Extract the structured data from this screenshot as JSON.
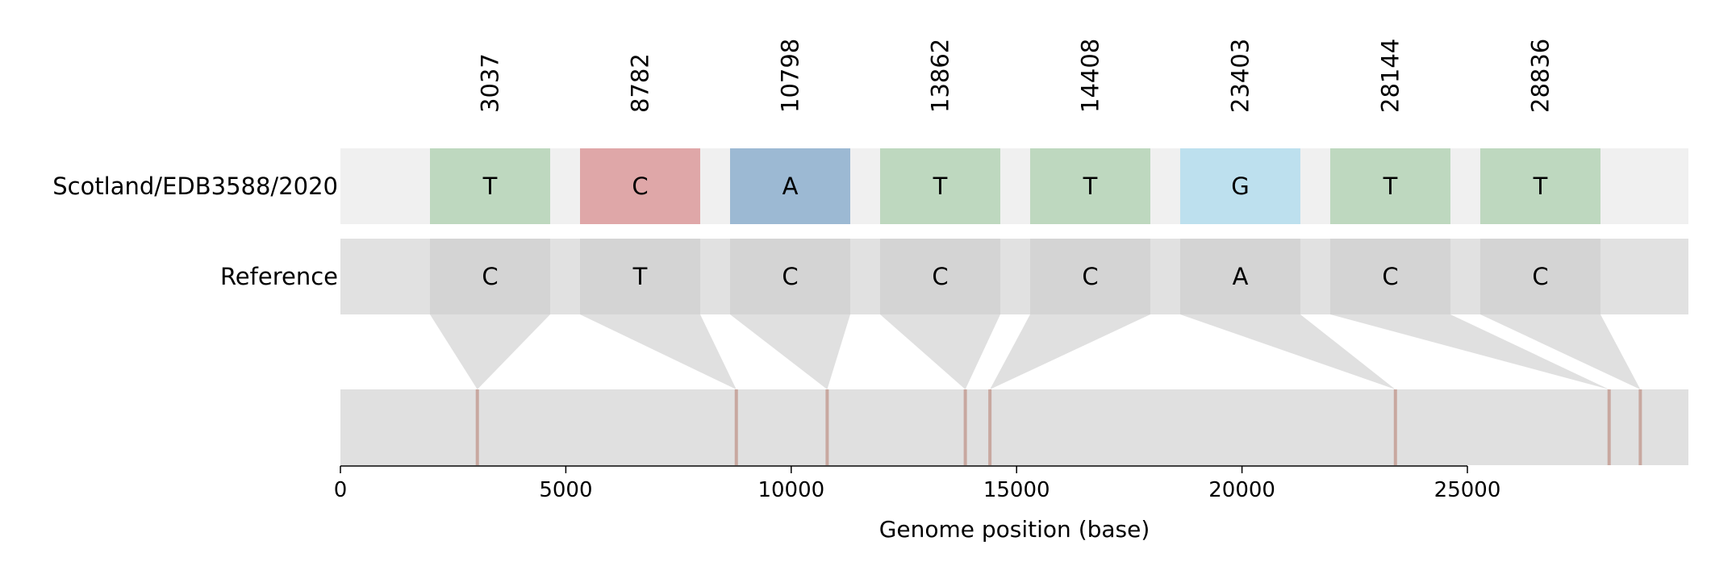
{
  "chart_data": {
    "type": "genome-snp-plot",
    "title": "",
    "xlabel": "Genome position (base)",
    "xlim": [
      0,
      29903
    ],
    "x_ticks": [
      0,
      5000,
      10000,
      15000,
      20000,
      25000
    ],
    "x_tick_labels": [
      "0",
      "5000",
      "10000",
      "15000",
      "20000",
      "25000"
    ],
    "rows": [
      {
        "name": "Scotland/EDB3588/2020",
        "role": "sample"
      },
      {
        "name": "Reference",
        "role": "reference"
      }
    ],
    "snps": [
      {
        "position": 3037,
        "label": "3037",
        "sample_base": "T",
        "reference_base": "C"
      },
      {
        "position": 8782,
        "label": "8782",
        "sample_base": "C",
        "reference_base": "T"
      },
      {
        "position": 10798,
        "label": "10798",
        "sample_base": "A",
        "reference_base": "C"
      },
      {
        "position": 13862,
        "label": "13862",
        "sample_base": "T",
        "reference_base": "C"
      },
      {
        "position": 14408,
        "label": "14408",
        "sample_base": "T",
        "reference_base": "C"
      },
      {
        "position": 23403,
        "label": "23403",
        "sample_base": "G",
        "reference_base": "A"
      },
      {
        "position": 28144,
        "label": "28144",
        "sample_base": "T",
        "reference_base": "C"
      },
      {
        "position": 28836,
        "label": "28836",
        "sample_base": "T",
        "reference_base": "C"
      }
    ],
    "base_colors": {
      "A": "#9cb9d3",
      "C": "#dfa7a8",
      "G": "#bde0ee",
      "T": "#bed8bf"
    },
    "reference_box_color": "#d4d4d4",
    "sample_track_color": "#f0f0f0",
    "reference_track_color": "#e1e1e1",
    "genome_track_color": "#e0e0e0",
    "connector_color": "#e0e0e0",
    "snp_marker_color": "#c8a8a0"
  }
}
